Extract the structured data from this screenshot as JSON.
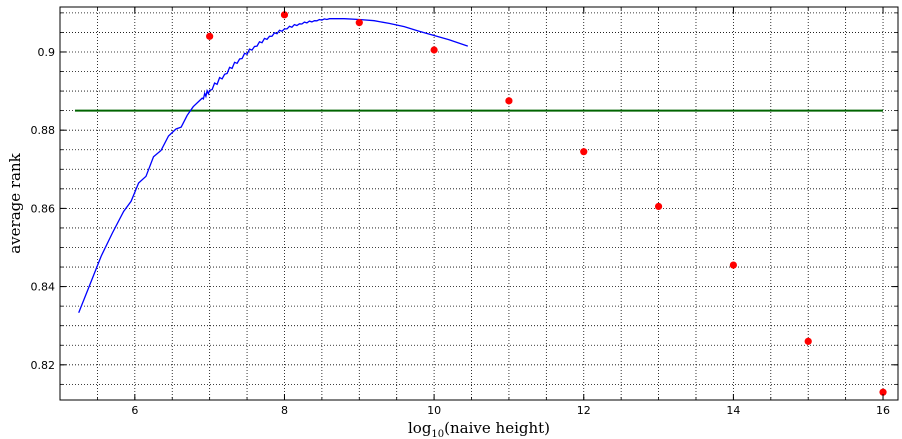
{
  "chart_data": {
    "type": "line",
    "xlabel_main": "log",
    "xlabel_sub": "10",
    "xlabel_rest": "(naive height)",
    "ylabel": "average rank",
    "xlim": [
      5.0,
      16.2
    ],
    "ylim": [
      0.811,
      0.9115
    ],
    "x_ticks": [
      6,
      8,
      10,
      12,
      14,
      16
    ],
    "x_tick_labels": [
      "6",
      "8",
      "10",
      "12",
      "14",
      "16"
    ],
    "y_ticks": [
      0.82,
      0.84,
      0.86,
      0.88,
      0.9
    ],
    "y_tick_labels": [
      "0.82",
      "0.84",
      "0.86",
      "0.88",
      "0.9"
    ],
    "grid": true,
    "legend": "none",
    "series": [
      {
        "kind": "scatter",
        "color": "#ff0000",
        "x": [
          7,
          8,
          9,
          10,
          11,
          12,
          13,
          14,
          15,
          16
        ],
        "y": [
          0.904,
          0.9095,
          0.9075,
          0.9005,
          0.8875,
          0.8745,
          0.8605,
          0.8455,
          0.826,
          0.813
        ]
      },
      {
        "kind": "hline",
        "color": "#006400",
        "y": 0.885,
        "x_range": [
          5.2,
          16.0
        ]
      },
      {
        "kind": "line",
        "color": "#0000ff",
        "x": [
          5.25,
          5.4,
          5.55,
          5.7,
          5.85,
          5.95,
          6.05,
          6.15,
          6.25,
          6.35,
          6.45,
          6.55,
          6.62,
          6.7,
          6.78,
          6.9,
          7.0,
          7.2,
          7.4,
          7.6,
          7.8,
          8.0,
          8.2,
          8.4,
          8.6,
          8.8,
          9.0,
          9.2,
          9.4,
          9.6,
          9.8,
          10.0,
          10.2,
          10.45
        ],
        "y": [
          0.8333,
          0.8405,
          0.8478,
          0.8537,
          0.8592,
          0.8618,
          0.8665,
          0.8682,
          0.8732,
          0.8748,
          0.8785,
          0.8803,
          0.8808,
          0.8838,
          0.886,
          0.8882,
          0.8902,
          0.8943,
          0.8982,
          0.9014,
          0.904,
          0.9059,
          0.9072,
          0.908,
          0.9085,
          0.9085,
          0.9083,
          0.908,
          0.9073,
          0.9065,
          0.9053,
          0.9042,
          0.9031,
          0.9015
        ]
      }
    ]
  }
}
